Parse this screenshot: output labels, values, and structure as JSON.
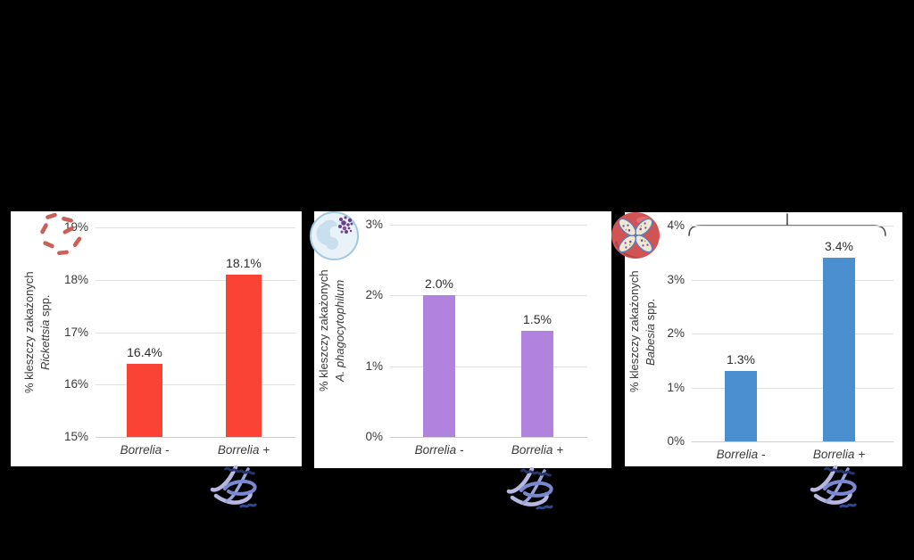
{
  "background_color": "#000000",
  "panel_color": "#ffffff",
  "chart_data": [
    {
      "type": "bar",
      "title": "",
      "xlabel": "",
      "ylabel_line1": "% kleszczy zakażonych",
      "species_italic": "Rickettsia",
      "species_suffix": " spp.",
      "categories": [
        "Borrelia -",
        "Borrelia +"
      ],
      "values": [
        16.4,
        18.1
      ],
      "value_labels": [
        "16.4%",
        "18.1%"
      ],
      "yticks": [
        "15%",
        "16%",
        "17%",
        "18%",
        "19%"
      ],
      "ylim": [
        15,
        19
      ],
      "grid": true,
      "legend": "none",
      "bar_color": "#fa4334",
      "icon": "rickettsia-bacteria-icon"
    },
    {
      "type": "bar",
      "title": "",
      "xlabel": "",
      "ylabel_line1": "% kleszczy zakażonych",
      "species_italic": "A. phagocytophilum",
      "species_suffix": "",
      "categories": [
        "Borrelia -",
        "Borrelia +"
      ],
      "values": [
        2.0,
        1.5
      ],
      "value_labels": [
        "2.0%",
        "1.5%"
      ],
      "yticks": [
        "0%",
        "1%",
        "2%",
        "3%"
      ],
      "ylim": [
        0,
        3
      ],
      "grid": true,
      "legend": "none",
      "bar_color": "#b283de",
      "icon": "neutrophil-anaplasma-icon"
    },
    {
      "type": "bar",
      "title": "",
      "xlabel": "",
      "ylabel_line1": "% kleszczy zakażonych",
      "species_italic": "Babesia",
      "species_suffix": " spp.",
      "categories": [
        "Borrelia -",
        "Borrelia +"
      ],
      "values": [
        1.3,
        3.4
      ],
      "value_labels": [
        "1.3%",
        "3.4%"
      ],
      "yticks": [
        "0%",
        "1%",
        "2%",
        "3%",
        "4%"
      ],
      "ylim": [
        0,
        4
      ],
      "grid": true,
      "legend": "none",
      "bar_color": "#4b8fd1",
      "bracket_annotation": true,
      "icon": "erythrocyte-babesia-icon"
    }
  ],
  "icons": {
    "chart1_topleft": "rickettsia-bacteria-icon",
    "chart2_topleft": "neutrophil-anaplasma-icon",
    "chart3_topleft": "erythrocyte-babesia-icon",
    "below_each_chart": "borrelia-spirochete-icon"
  }
}
